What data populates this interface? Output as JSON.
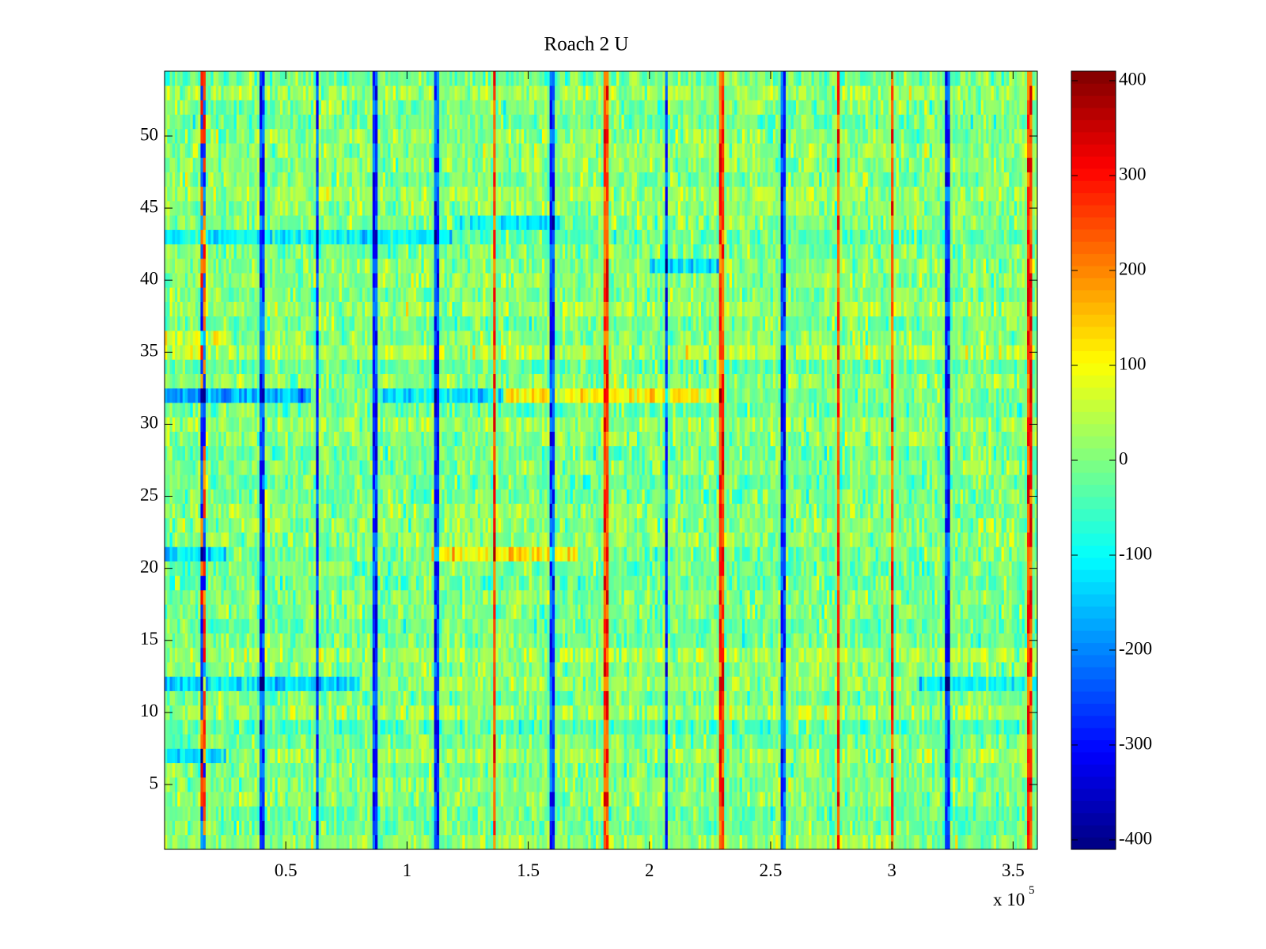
{
  "chart_data": {
    "type": "heatmap",
    "title": "Roach 2 U",
    "colormap": "jet",
    "colormap_stops": [
      "#00008f",
      "#0000ff",
      "#00ffff",
      "#ffff00",
      "#ff0000",
      "#800000"
    ],
    "x_axis": {
      "range": [
        0,
        360000
      ],
      "ticks": [
        50000,
        100000,
        150000,
        200000,
        250000,
        300000,
        350000
      ],
      "tick_labels": [
        "0.5",
        "1",
        "1.5",
        "2",
        "2.5",
        "3",
        "3.5"
      ],
      "multiplier_base": "x 10",
      "multiplier_exponent": "5"
    },
    "y_axis": {
      "range": [
        0.5,
        54.5
      ],
      "ticks": [
        5,
        10,
        15,
        20,
        25,
        30,
        35,
        40,
        45,
        50
      ],
      "tick_labels": [
        "5",
        "10",
        "15",
        "20",
        "25",
        "30",
        "35",
        "40",
        "45",
        "50"
      ]
    },
    "colorbar": {
      "range": [
        -410,
        410
      ],
      "ticks": [
        -400,
        -300,
        -200,
        -100,
        0,
        100,
        200,
        300,
        400
      ],
      "tick_labels": [
        "-400",
        "-300",
        "-200",
        "-100",
        "0",
        "100",
        "200",
        "300",
        "400"
      ]
    },
    "rows": 54,
    "value_distribution": {
      "typical_range": [
        -100,
        100
      ],
      "mean": 0
    },
    "vertical_features": [
      {
        "x": 16000,
        "kind": "mixed"
      },
      {
        "x": 40000,
        "kind": "blue"
      },
      {
        "x": 63000,
        "kind": "blue"
      },
      {
        "x": 87000,
        "kind": "blue"
      },
      {
        "x": 112000,
        "kind": "blue"
      },
      {
        "x": 136000,
        "kind": "red"
      },
      {
        "x": 160000,
        "kind": "blue"
      },
      {
        "x": 182000,
        "kind": "red"
      },
      {
        "x": 207000,
        "kind": "blue"
      },
      {
        "x": 230000,
        "kind": "red"
      },
      {
        "x": 255000,
        "kind": "blue"
      },
      {
        "x": 278000,
        "kind": "red"
      },
      {
        "x": 300000,
        "kind": "red"
      },
      {
        "x": 323000,
        "kind": "blue"
      },
      {
        "x": 357000,
        "kind": "red"
      }
    ],
    "row_offsets": [
      {
        "row": 7,
        "x_range": [
          0,
          25000
        ],
        "offset": -140
      },
      {
        "row": 12,
        "x_range": [
          0,
          80000
        ],
        "offset": -150
      },
      {
        "row": 12,
        "x_range": [
          310000,
          360000
        ],
        "offset": -110
      },
      {
        "row": 21,
        "x_range": [
          110000,
          170000
        ],
        "offset": 120
      },
      {
        "row": 21,
        "x_range": [
          0,
          25000
        ],
        "offset": -110
      },
      {
        "row": 32,
        "x_range": [
          0,
          60000
        ],
        "offset": -170
      },
      {
        "row": 32,
        "x_range": [
          90000,
          140000
        ],
        "offset": -120
      },
      {
        "row": 32,
        "x_range": [
          140000,
          230000
        ],
        "offset": 110
      },
      {
        "row": 36,
        "x_range": [
          0,
          25000
        ],
        "offset": 80
      },
      {
        "row": 41,
        "x_range": [
          200000,
          230000
        ],
        "offset": -120
      },
      {
        "row": 43,
        "x_range": [
          0,
          120000
        ],
        "offset": -80
      },
      {
        "row": 44,
        "x_range": [
          120000,
          165000
        ],
        "offset": -110
      }
    ]
  }
}
